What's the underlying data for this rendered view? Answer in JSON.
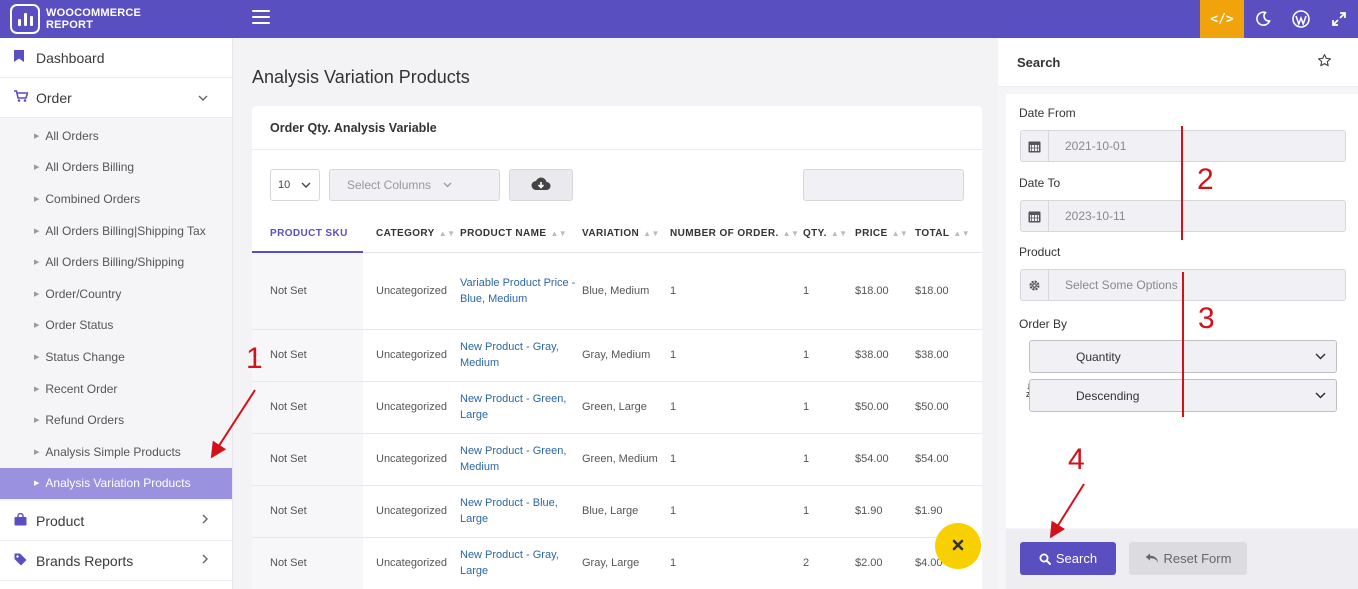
{
  "brand": {
    "line1": "WOOCOMMERCE",
    "line2": "REPORT"
  },
  "topbar": {
    "code_icon": "</>",
    "icons": [
      "code-icon",
      "moon-icon",
      "wordpress-icon",
      "expand-icon"
    ]
  },
  "sidebar": {
    "dashboard": "Dashboard",
    "order": "Order",
    "order_items": [
      "All Orders",
      "All Orders Billing",
      "Combined Orders",
      "All Orders Billing|Shipping Tax",
      "All Orders Billing/Shipping",
      "Order/Country",
      "Order Status",
      "Status Change",
      "Recent Order",
      "Refund Orders",
      "Analysis Simple Products",
      "Analysis Variation Products"
    ],
    "product": "Product",
    "brands": "Brands Reports"
  },
  "main": {
    "title": "Analysis Variation Products",
    "card_title": "Order Qty. Analysis Variable",
    "page_length": "10",
    "select_columns": "Select Columns",
    "columns": [
      "PRODUCT SKU",
      "CATEGORY",
      "PRODUCT NAME",
      "VARIATION",
      "NUMBER OF ORDER.",
      "QTY.",
      "PRICE",
      "TOTAL"
    ],
    "rows": [
      [
        "Not Set",
        "Uncategorized",
        "Variable Product Price - Blue, Medium",
        "Blue, Medium",
        "1",
        "1",
        "$18.00",
        "$18.00"
      ],
      [
        "Not Set",
        "Uncategorized",
        "New Product - Gray, Medium",
        "Gray, Medium",
        "1",
        "1",
        "$38.00",
        "$38.00"
      ],
      [
        "Not Set",
        "Uncategorized",
        "New Product - Green, Large",
        "Green, Large",
        "1",
        "1",
        "$50.00",
        "$50.00"
      ],
      [
        "Not Set",
        "Uncategorized",
        "New Product - Green, Medium",
        "Green, Medium",
        "1",
        "1",
        "$54.00",
        "$54.00"
      ],
      [
        "Not Set",
        "Uncategorized",
        "New Product - Blue, Large",
        "Blue, Large",
        "1",
        "1",
        "$1.90",
        "$1.90"
      ],
      [
        "Not Set",
        "Uncategorized",
        "New Product - Gray, Large",
        "Gray, Large",
        "1",
        "2",
        "$2.00",
        "$4.00"
      ]
    ]
  },
  "search_panel": {
    "title": "Search",
    "date_from_label": "Date From",
    "date_from": "2021-10-01",
    "date_to_label": "Date To",
    "date_to": "2023-10-11",
    "product_label": "Product",
    "product_placeholder": "Select Some Options",
    "order_by_label": "Order By",
    "order_by": "Quantity",
    "order_dir": "Descending",
    "search_button": "Search",
    "reset_button": "Reset Form"
  },
  "annotations": [
    "1",
    "2",
    "3",
    "4"
  ],
  "colors": {
    "primary": "#5a4fc1",
    "accent": "#f0a30a",
    "fab": "#f8d000",
    "annotation": "#d3111a",
    "active_menu": "#9a92de"
  }
}
